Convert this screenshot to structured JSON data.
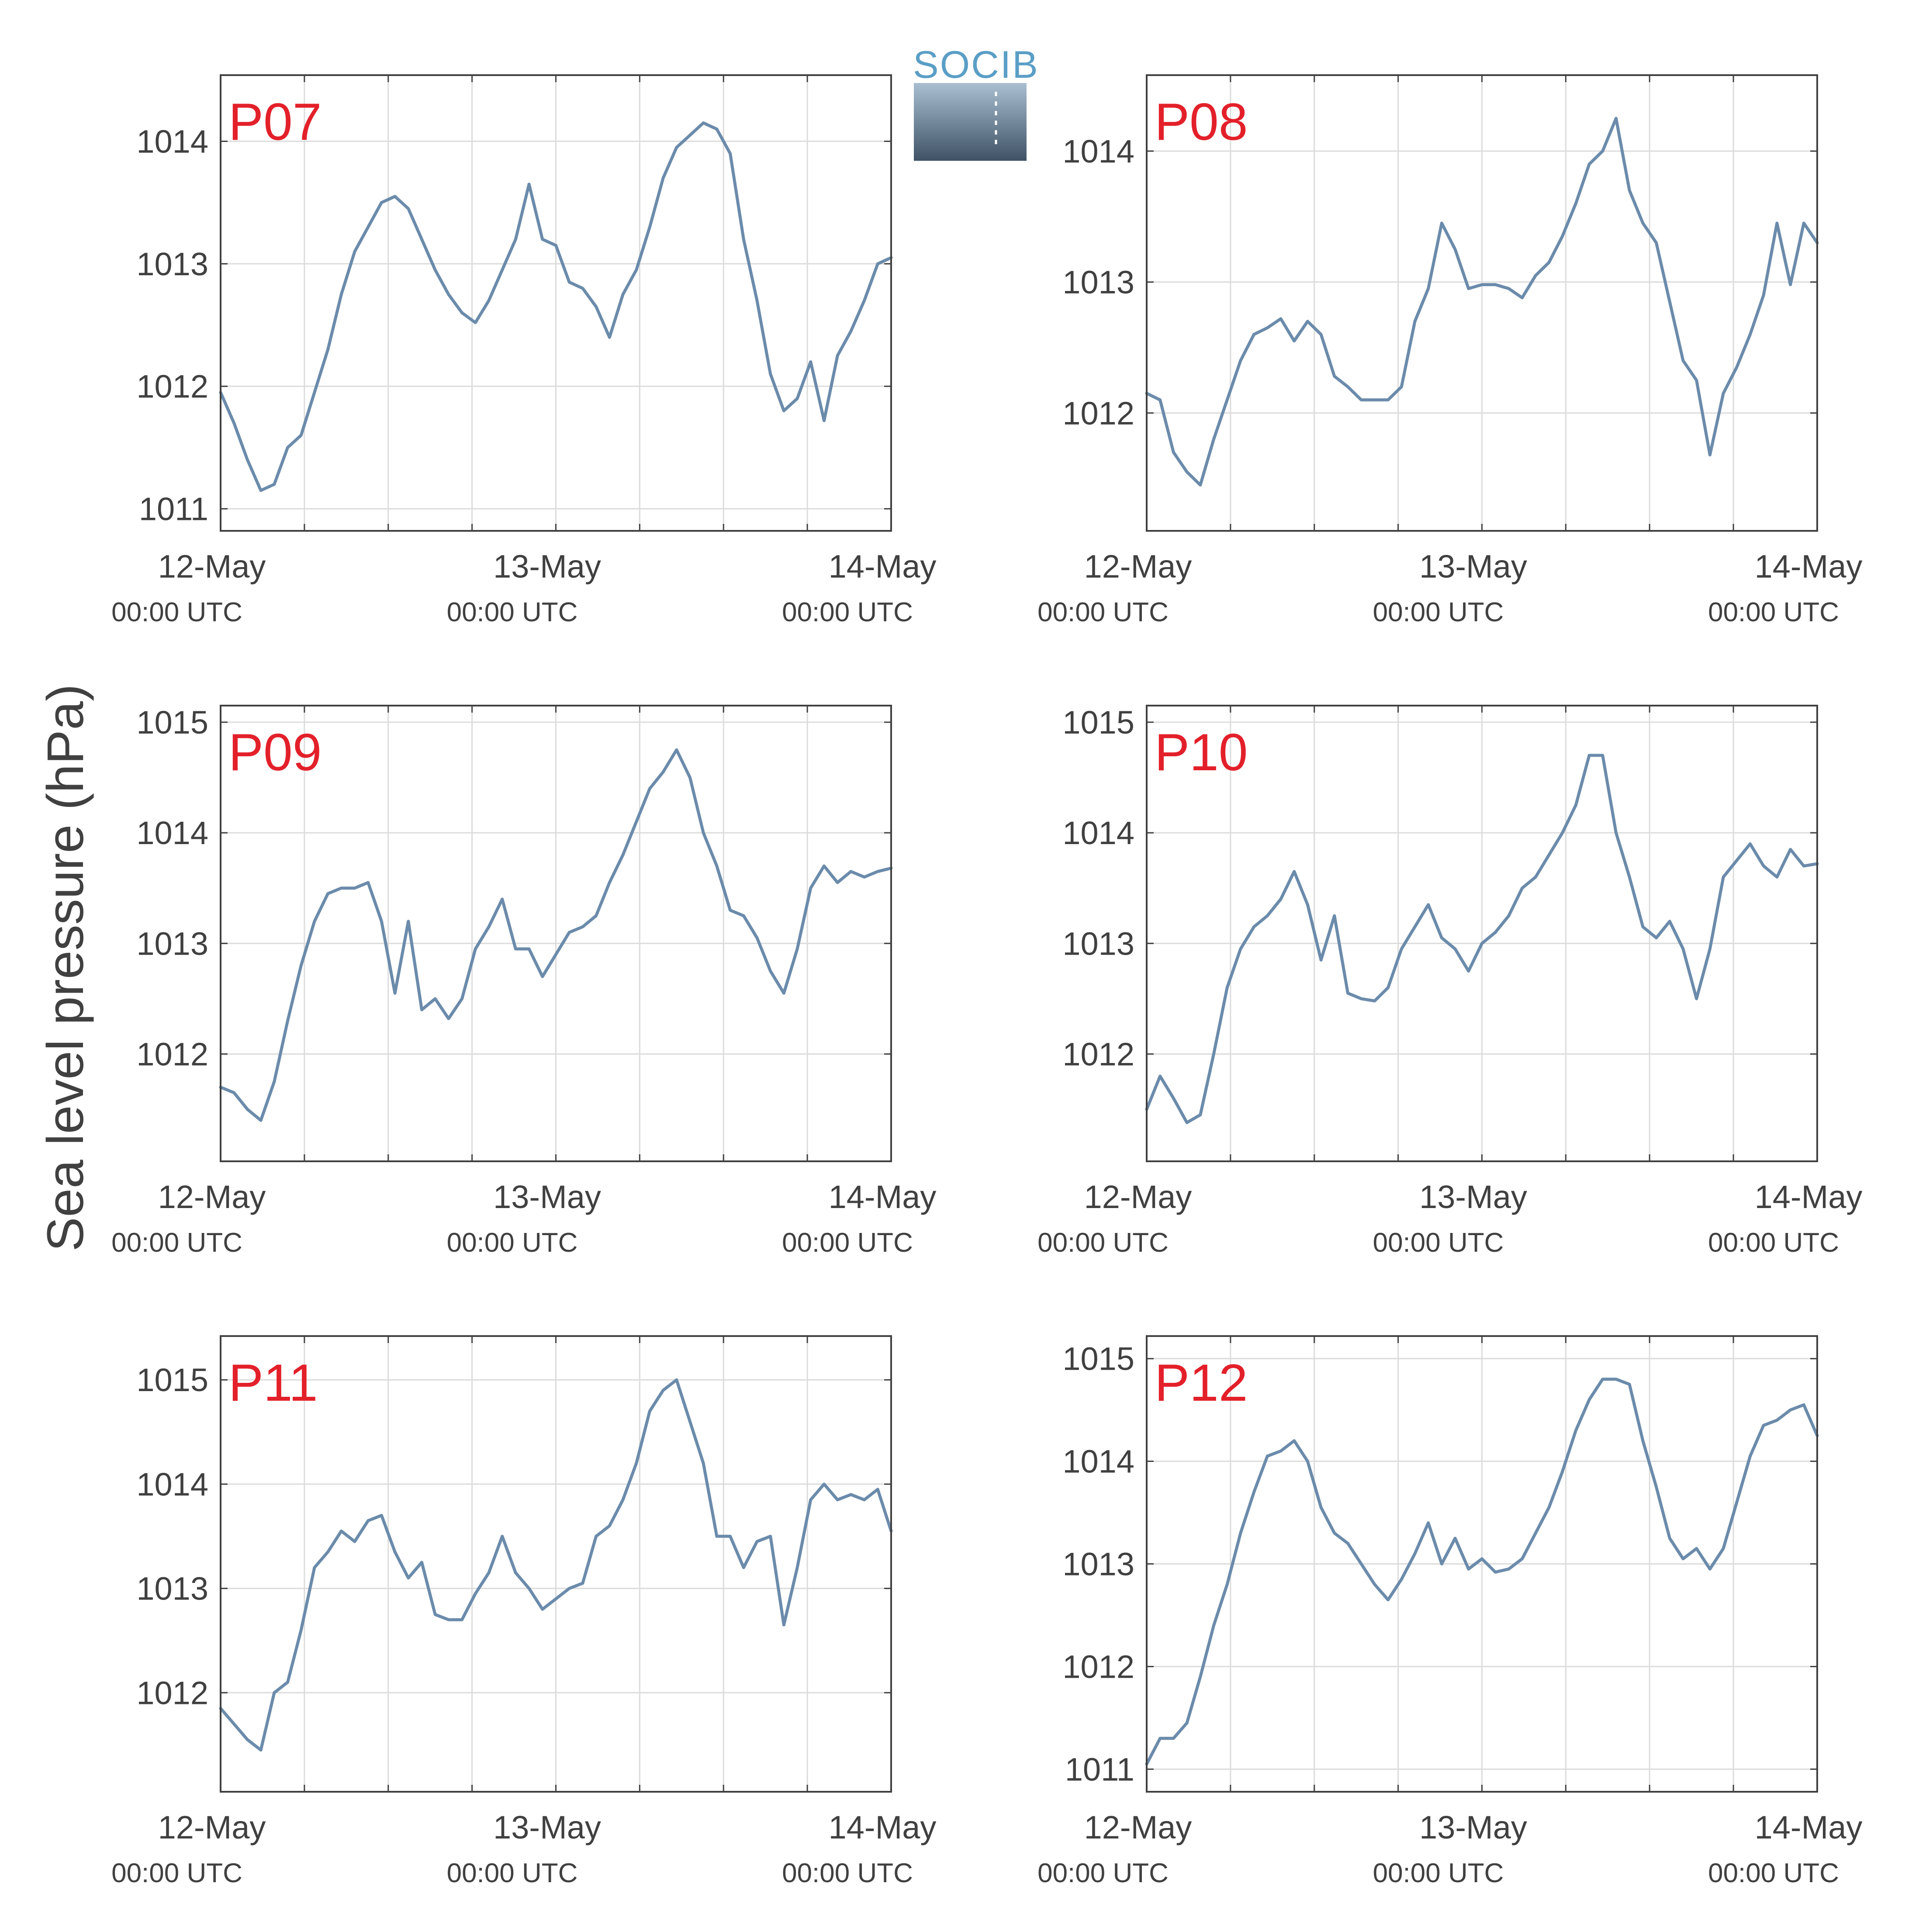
{
  "figure": {
    "ylabel": "Sea level pressure (hPa)",
    "logo_text": "SOCIB",
    "colors": {
      "line": "#6b8bab",
      "label": "#e3202a",
      "axis": "#404040",
      "grid": "#dcdcdc"
    }
  },
  "chart_data": [
    {
      "type": "line",
      "label": "P07",
      "x": [
        0,
        0.04,
        0.08,
        0.12,
        0.16,
        0.2,
        0.24,
        0.28,
        0.32,
        0.36,
        0.4,
        0.44,
        0.48,
        0.52,
        0.56,
        0.6,
        0.64,
        0.68,
        0.72,
        0.76,
        0.8,
        0.84,
        0.88,
        0.92,
        0.96,
        1.0,
        1.04,
        1.08,
        1.12,
        1.16,
        1.2,
        1.24,
        1.28,
        1.32,
        1.36,
        1.4,
        1.44,
        1.48,
        1.52,
        1.56,
        1.6,
        1.64,
        1.68,
        1.72,
        1.76,
        1.8,
        1.84,
        1.88,
        1.92,
        1.96,
        2.0
      ],
      "y": [
        1011.95,
        1011.7,
        1011.4,
        1011.15,
        1011.2,
        1011.5,
        1011.6,
        1011.95,
        1012.3,
        1012.75,
        1013.1,
        1013.3,
        1013.5,
        1013.55,
        1013.45,
        1013.2,
        1012.95,
        1012.75,
        1012.6,
        1012.52,
        1012.7,
        1012.95,
        1013.2,
        1013.65,
        1013.2,
        1013.15,
        1012.85,
        1012.8,
        1012.65,
        1012.4,
        1012.75,
        1012.95,
        1013.3,
        1013.7,
        1013.95,
        1014.05,
        1014.15,
        1014.1,
        1013.9,
        1013.2,
        1012.7,
        1012.1,
        1011.8,
        1011.9,
        1012.2,
        1011.72,
        1012.25,
        1012.45,
        1012.7,
        1013.0,
        1013.05
      ],
      "xticks": [
        "12-May",
        "13-May",
        "14-May"
      ],
      "xticks_sub": [
        "00:00 UTC",
        "00:00 UTC",
        "00:00 UTC"
      ],
      "yticks": [
        1011,
        1012,
        1013,
        1014
      ],
      "xlim": [
        0,
        2
      ],
      "ylim": [
        1010.82,
        1014.54
      ],
      "grid": true
    },
    {
      "type": "line",
      "label": "P08",
      "x": [
        0,
        0.04,
        0.08,
        0.12,
        0.16,
        0.2,
        0.24,
        0.28,
        0.32,
        0.36,
        0.4,
        0.44,
        0.48,
        0.52,
        0.56,
        0.6,
        0.64,
        0.68,
        0.72,
        0.76,
        0.8,
        0.84,
        0.88,
        0.92,
        0.96,
        1.0,
        1.04,
        1.08,
        1.12,
        1.16,
        1.2,
        1.24,
        1.28,
        1.32,
        1.36,
        1.4,
        1.44,
        1.48,
        1.52,
        1.56,
        1.6,
        1.64,
        1.68,
        1.72,
        1.76,
        1.8,
        1.84,
        1.88,
        1.92,
        1.96,
        2.0
      ],
      "y": [
        1012.15,
        1012.1,
        1011.7,
        1011.55,
        1011.45,
        1011.8,
        1012.1,
        1012.4,
        1012.6,
        1012.65,
        1012.72,
        1012.55,
        1012.7,
        1012.6,
        1012.28,
        1012.2,
        1012.1,
        1012.1,
        1012.1,
        1012.2,
        1012.7,
        1012.95,
        1013.45,
        1013.25,
        1012.95,
        1012.98,
        1012.98,
        1012.95,
        1012.88,
        1013.05,
        1013.15,
        1013.35,
        1013.6,
        1013.9,
        1014.0,
        1014.25,
        1013.7,
        1013.45,
        1013.3,
        1012.85,
        1012.4,
        1012.25,
        1011.68,
        1012.15,
        1012.35,
        1012.6,
        1012.9,
        1013.45,
        1012.98,
        1013.45,
        1013.3
      ],
      "xticks": [
        "12-May",
        "13-May",
        "14-May"
      ],
      "xticks_sub": [
        "00:00 UTC",
        "00:00 UTC",
        "00:00 UTC"
      ],
      "yticks": [
        1012,
        1013,
        1014
      ],
      "xlim": [
        0,
        2
      ],
      "ylim": [
        1011.1,
        1014.58
      ],
      "grid": true
    },
    {
      "type": "line",
      "label": "P09",
      "x": [
        0,
        0.04,
        0.08,
        0.12,
        0.16,
        0.2,
        0.24,
        0.28,
        0.32,
        0.36,
        0.4,
        0.44,
        0.48,
        0.52,
        0.56,
        0.6,
        0.64,
        0.68,
        0.72,
        0.76,
        0.8,
        0.84,
        0.88,
        0.92,
        0.96,
        1.0,
        1.04,
        1.08,
        1.12,
        1.16,
        1.2,
        1.24,
        1.28,
        1.32,
        1.36,
        1.4,
        1.44,
        1.48,
        1.52,
        1.56,
        1.6,
        1.64,
        1.68,
        1.72,
        1.76,
        1.8,
        1.84,
        1.88,
        1.92,
        1.96,
        2.0
      ],
      "y": [
        1011.7,
        1011.65,
        1011.5,
        1011.4,
        1011.75,
        1012.3,
        1012.8,
        1013.2,
        1013.45,
        1013.5,
        1013.5,
        1013.55,
        1013.2,
        1012.55,
        1013.2,
        1012.4,
        1012.5,
        1012.32,
        1012.5,
        1012.95,
        1013.15,
        1013.4,
        1012.95,
        1012.95,
        1012.7,
        1012.9,
        1013.1,
        1013.15,
        1013.25,
        1013.55,
        1013.8,
        1014.1,
        1014.4,
        1014.55,
        1014.75,
        1014.5,
        1014.0,
        1013.7,
        1013.3,
        1013.25,
        1013.05,
        1012.75,
        1012.55,
        1012.95,
        1013.5,
        1013.7,
        1013.55,
        1013.65,
        1013.6,
        1013.65,
        1013.68
      ],
      "xticks": [
        "12-May",
        "13-May",
        "14-May"
      ],
      "xticks_sub": [
        "00:00 UTC",
        "00:00 UTC",
        "00:00 UTC"
      ],
      "yticks": [
        1012,
        1013,
        1014,
        1015
      ],
      "xlim": [
        0,
        2
      ],
      "ylim": [
        1011.03,
        1015.15
      ],
      "grid": true
    },
    {
      "type": "line",
      "label": "P10",
      "x": [
        0,
        0.04,
        0.08,
        0.12,
        0.16,
        0.2,
        0.24,
        0.28,
        0.32,
        0.36,
        0.4,
        0.44,
        0.48,
        0.52,
        0.56,
        0.6,
        0.64,
        0.68,
        0.72,
        0.76,
        0.8,
        0.84,
        0.88,
        0.92,
        0.96,
        1.0,
        1.04,
        1.08,
        1.12,
        1.16,
        1.2,
        1.24,
        1.28,
        1.32,
        1.36,
        1.4,
        1.44,
        1.48,
        1.52,
        1.56,
        1.6,
        1.64,
        1.68,
        1.72,
        1.76,
        1.8,
        1.84,
        1.88,
        1.92,
        1.96,
        2.0
      ],
      "y": [
        1011.5,
        1011.8,
        1011.6,
        1011.38,
        1011.45,
        1012.0,
        1012.6,
        1012.95,
        1013.15,
        1013.25,
        1013.4,
        1013.65,
        1013.35,
        1012.85,
        1013.25,
        1012.55,
        1012.5,
        1012.48,
        1012.6,
        1012.95,
        1013.15,
        1013.35,
        1013.05,
        1012.95,
        1012.75,
        1013.0,
        1013.1,
        1013.25,
        1013.5,
        1013.6,
        1013.8,
        1014.0,
        1014.25,
        1014.7,
        1014.7,
        1014.0,
        1013.6,
        1013.15,
        1013.05,
        1013.2,
        1012.95,
        1012.5,
        1012.95,
        1013.6,
        1013.75,
        1013.9,
        1013.7,
        1013.6,
        1013.85,
        1013.7,
        1013.72
      ],
      "xticks": [
        "12-May",
        "13-May",
        "14-May"
      ],
      "xticks_sub": [
        "00:00 UTC",
        "00:00 UTC",
        "00:00 UTC"
      ],
      "yticks": [
        1012,
        1013,
        1014,
        1015
      ],
      "xlim": [
        0,
        2
      ],
      "ylim": [
        1011.03,
        1015.15
      ],
      "grid": true
    },
    {
      "type": "line",
      "label": "P11",
      "x": [
        0,
        0.04,
        0.08,
        0.12,
        0.16,
        0.2,
        0.24,
        0.28,
        0.32,
        0.36,
        0.4,
        0.44,
        0.48,
        0.52,
        0.56,
        0.6,
        0.64,
        0.68,
        0.72,
        0.76,
        0.8,
        0.84,
        0.88,
        0.92,
        0.96,
        1.0,
        1.04,
        1.08,
        1.12,
        1.16,
        1.2,
        1.24,
        1.28,
        1.32,
        1.36,
        1.4,
        1.44,
        1.48,
        1.52,
        1.56,
        1.6,
        1.64,
        1.68,
        1.72,
        1.76,
        1.8,
        1.84,
        1.88,
        1.92,
        1.96,
        2.0
      ],
      "y": [
        1011.85,
        1011.7,
        1011.55,
        1011.45,
        1012.0,
        1012.1,
        1012.6,
        1013.2,
        1013.35,
        1013.55,
        1013.45,
        1013.65,
        1013.7,
        1013.35,
        1013.1,
        1013.25,
        1012.75,
        1012.7,
        1012.7,
        1012.95,
        1013.15,
        1013.5,
        1013.15,
        1013.0,
        1012.8,
        1012.9,
        1013.0,
        1013.05,
        1013.5,
        1013.6,
        1013.85,
        1014.2,
        1014.7,
        1014.9,
        1015.0,
        1014.6,
        1014.2,
        1013.5,
        1013.5,
        1013.2,
        1013.45,
        1013.5,
        1012.65,
        1013.2,
        1013.85,
        1014.0,
        1013.85,
        1013.9,
        1013.85,
        1013.95,
        1013.55
      ],
      "xticks": [
        "12-May",
        "13-May",
        "14-May"
      ],
      "xticks_sub": [
        "00:00 UTC",
        "00:00 UTC",
        "00:00 UTC"
      ],
      "yticks": [
        1012,
        1013,
        1014,
        1015
      ],
      "xlim": [
        0,
        2
      ],
      "ylim": [
        1011.05,
        1015.42
      ],
      "grid": true
    },
    {
      "type": "line",
      "label": "P12",
      "x": [
        0,
        0.04,
        0.08,
        0.12,
        0.16,
        0.2,
        0.24,
        0.28,
        0.32,
        0.36,
        0.4,
        0.44,
        0.48,
        0.52,
        0.56,
        0.6,
        0.64,
        0.68,
        0.72,
        0.76,
        0.8,
        0.84,
        0.88,
        0.92,
        0.96,
        1.0,
        1.04,
        1.08,
        1.12,
        1.16,
        1.2,
        1.24,
        1.28,
        1.32,
        1.36,
        1.4,
        1.44,
        1.48,
        1.52,
        1.56,
        1.6,
        1.64,
        1.68,
        1.72,
        1.76,
        1.8,
        1.84,
        1.88,
        1.92,
        1.96,
        2.0
      ],
      "y": [
        1011.05,
        1011.3,
        1011.3,
        1011.45,
        1011.9,
        1012.4,
        1012.8,
        1013.3,
        1013.7,
        1014.05,
        1014.1,
        1014.2,
        1014.0,
        1013.55,
        1013.3,
        1013.2,
        1013.0,
        1012.8,
        1012.65,
        1012.85,
        1013.1,
        1013.4,
        1013.0,
        1013.25,
        1012.95,
        1013.05,
        1012.92,
        1012.95,
        1013.05,
        1013.3,
        1013.55,
        1013.9,
        1014.3,
        1014.6,
        1014.8,
        1014.8,
        1014.75,
        1014.2,
        1013.75,
        1013.25,
        1013.05,
        1013.15,
        1012.95,
        1013.15,
        1013.6,
        1014.05,
        1014.35,
        1014.4,
        1014.5,
        1014.55,
        1014.25
      ],
      "xticks": [
        "12-May",
        "13-May",
        "14-May"
      ],
      "xticks_sub": [
        "00:00 UTC",
        "00:00 UTC",
        "00:00 UTC"
      ],
      "yticks": [
        1011,
        1012,
        1013,
        1014,
        1015
      ],
      "xlim": [
        0,
        2
      ],
      "ylim": [
        1010.78,
        1015.22
      ],
      "grid": true
    }
  ]
}
